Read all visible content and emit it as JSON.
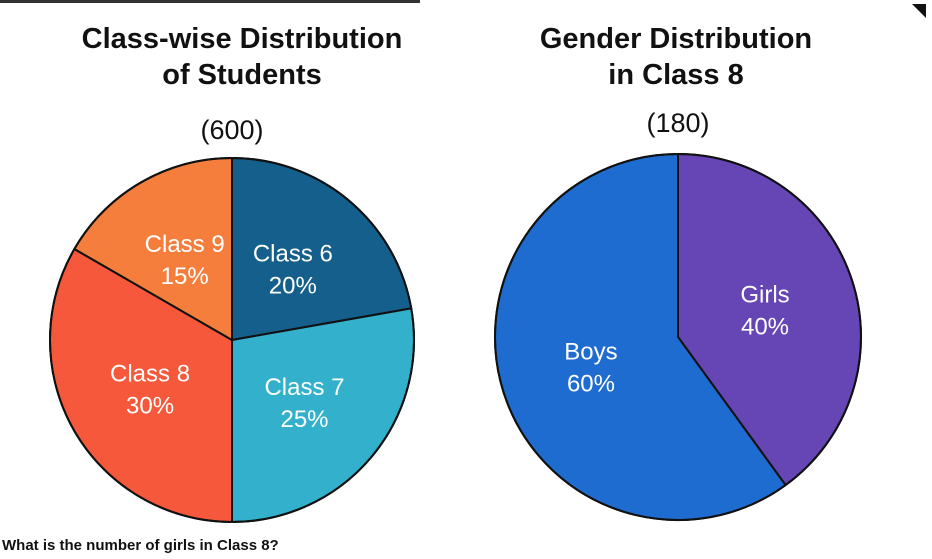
{
  "chart_data": [
    {
      "type": "pie",
      "title": "Class-wise Distribution of Students",
      "title_lines": [
        "Class-wise Distribution",
        "of Students"
      ],
      "total_label": "(600)",
      "total": 600,
      "slices": [
        {
          "category": "Class 6",
          "value_label": "20%",
          "value": 20,
          "color": "#145f8c"
        },
        {
          "category": "Class 7",
          "value_label": "25%",
          "value": 25,
          "color": "#33b1cc"
        },
        {
          "category": "Class 8",
          "value_label": "30%",
          "value": 30,
          "color": "#f5583a"
        },
        {
          "category": "Class 9",
          "value_label": "15%",
          "value": 15,
          "color": "#f57e3d"
        }
      ]
    },
    {
      "type": "pie",
      "title": "Gender Distribution in Class 8",
      "title_lines": [
        "Gender Distribution",
        "in Class 8"
      ],
      "total_label": "(180)",
      "total": 180,
      "slices": [
        {
          "category": "Girls",
          "value_label": "40%",
          "value": 40,
          "color": "#6645b4"
        },
        {
          "category": "Boys",
          "value_label": "60%",
          "value": 60,
          "color": "#1e6ccf"
        }
      ]
    }
  ],
  "question": "What is the number of girls in Class 8?"
}
